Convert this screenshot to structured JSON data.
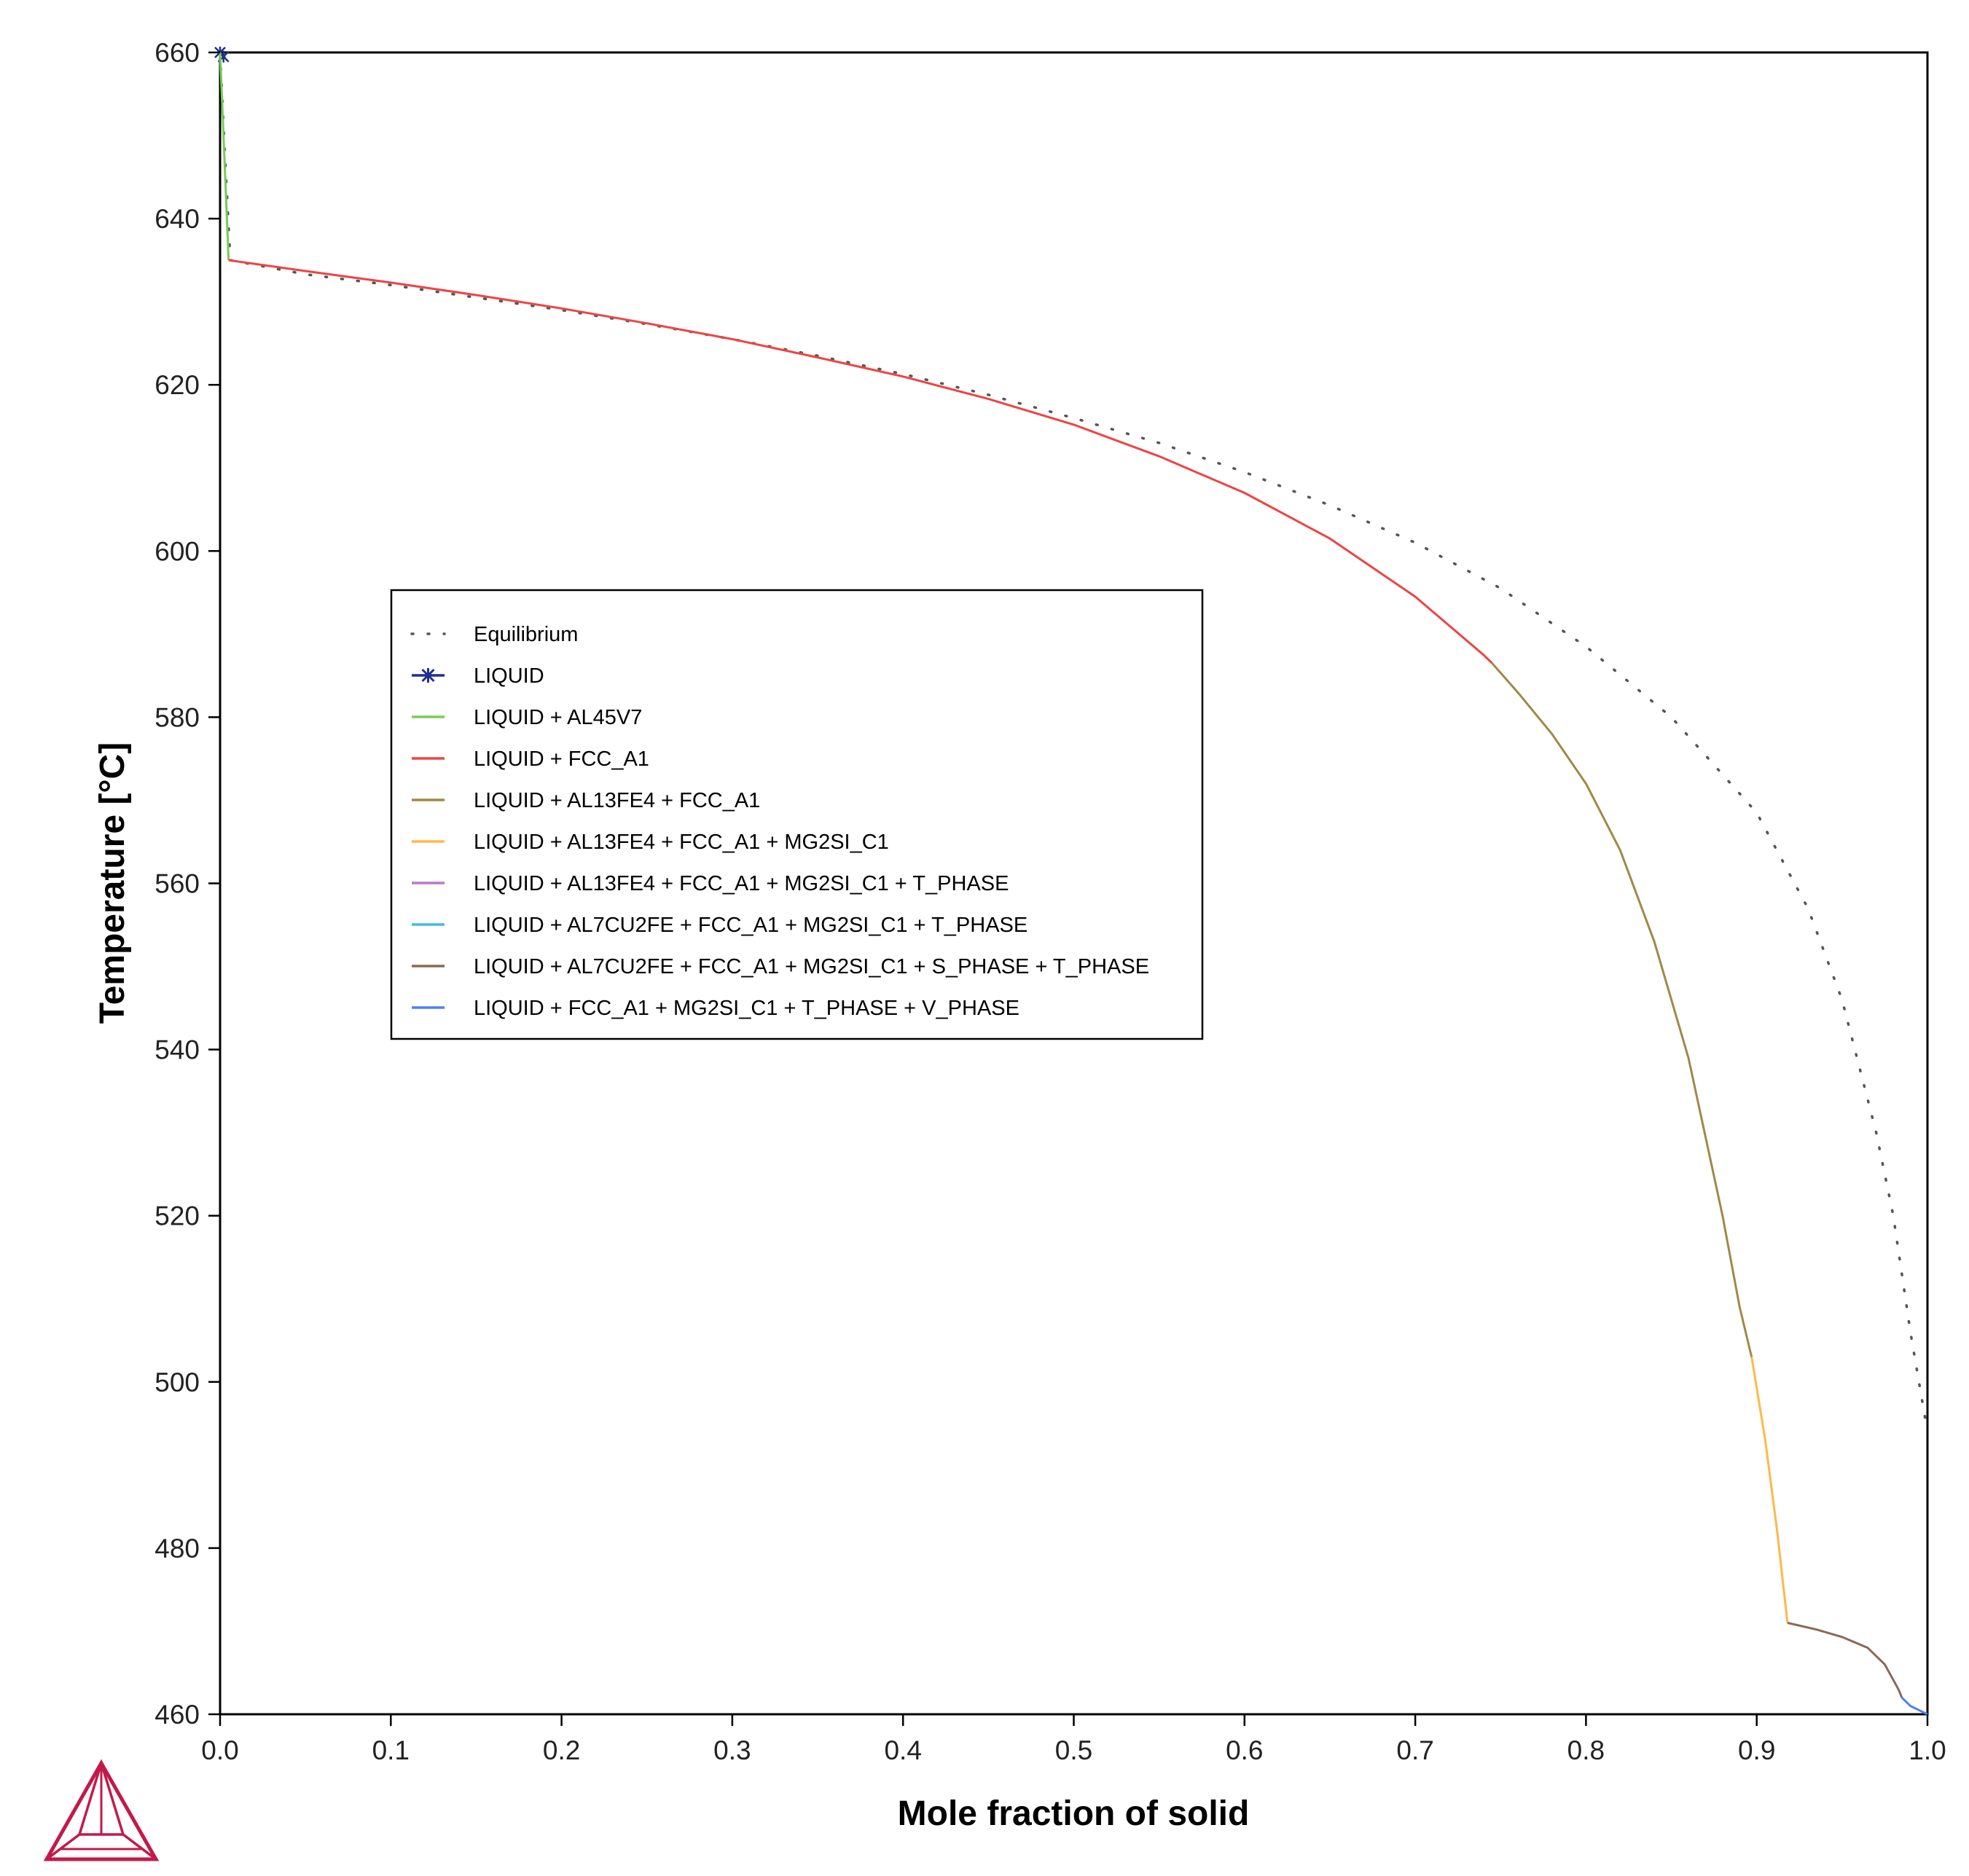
{
  "chart_data": {
    "type": "line",
    "xlabel": "Mole fraction of solid",
    "ylabel": "Temperature [°C]",
    "xlim": [
      0.0,
      1.0
    ],
    "ylim": [
      460,
      660
    ],
    "xticks": [
      0.0,
      0.1,
      0.2,
      0.3,
      0.4,
      0.5,
      0.6,
      0.7,
      0.8,
      0.9,
      1.0
    ],
    "xtick_labels": [
      "0.0",
      "0.1",
      "0.2",
      "0.3",
      "0.4",
      "0.5",
      "0.6",
      "0.7",
      "0.8",
      "0.9",
      "1.0"
    ],
    "yticks": [
      460,
      480,
      500,
      520,
      540,
      560,
      580,
      600,
      620,
      640,
      660
    ],
    "ytick_labels": [
      "460",
      "480",
      "500",
      "520",
      "540",
      "560",
      "580",
      "600",
      "620",
      "640",
      "660"
    ],
    "grid": false,
    "legend_position": "center-left",
    "series": [
      {
        "name": "Equilibrium",
        "color": "#555555",
        "style": "dotted",
        "points": [
          [
            0.0,
            660
          ],
          [
            0.003,
            647
          ],
          [
            0.006,
            635
          ],
          [
            0.05,
            633.3
          ],
          [
            0.1,
            632
          ],
          [
            0.15,
            630.5
          ],
          [
            0.2,
            629
          ],
          [
            0.25,
            627.3
          ],
          [
            0.3,
            625.5
          ],
          [
            0.35,
            623.5
          ],
          [
            0.4,
            621.3
          ],
          [
            0.45,
            618.8
          ],
          [
            0.5,
            616
          ],
          [
            0.55,
            613
          ],
          [
            0.6,
            609.5
          ],
          [
            0.65,
            605.5
          ],
          [
            0.7,
            601
          ],
          [
            0.75,
            595.5
          ],
          [
            0.8,
            588.5
          ],
          [
            0.85,
            580
          ],
          [
            0.9,
            568.5
          ],
          [
            0.93,
            557
          ],
          [
            0.95,
            546
          ],
          [
            0.97,
            530
          ],
          [
            0.98,
            520
          ],
          [
            0.99,
            506
          ],
          [
            1.0,
            494
          ]
        ]
      },
      {
        "name": "LIQUID",
        "color": "#1f2f8f",
        "style": "star",
        "points": [
          [
            0.0,
            660
          ],
          [
            0.002,
            659.5
          ]
        ]
      },
      {
        "name": "LIQUID + AL45V7",
        "color": "#77cc55",
        "style": "solid",
        "points": [
          [
            0.0,
            660
          ],
          [
            0.002,
            650
          ],
          [
            0.004,
            640
          ],
          [
            0.005,
            635
          ]
        ]
      },
      {
        "name": "LIQUID + FCC_A1",
        "color": "#ee4444",
        "style": "solid",
        "points": [
          [
            0.005,
            635
          ],
          [
            0.05,
            633.7
          ],
          [
            0.1,
            632.3
          ],
          [
            0.15,
            630.8
          ],
          [
            0.2,
            629.2
          ],
          [
            0.25,
            627.4
          ],
          [
            0.3,
            625.5
          ],
          [
            0.35,
            623.3
          ],
          [
            0.4,
            621
          ],
          [
            0.45,
            618.3
          ],
          [
            0.5,
            615.2
          ],
          [
            0.55,
            611.4
          ],
          [
            0.6,
            607
          ],
          [
            0.65,
            601.5
          ],
          [
            0.7,
            594.5
          ],
          [
            0.74,
            587.5
          ],
          [
            0.745,
            586.5
          ]
        ]
      },
      {
        "name": "LIQUID + AL13FE4 + FCC_A1",
        "color": "#a08848",
        "style": "solid",
        "points": [
          [
            0.745,
            586.5
          ],
          [
            0.76,
            583
          ],
          [
            0.78,
            578
          ],
          [
            0.8,
            572
          ],
          [
            0.82,
            564
          ],
          [
            0.84,
            553
          ],
          [
            0.86,
            539
          ],
          [
            0.88,
            520
          ],
          [
            0.89,
            509
          ],
          [
            0.897,
            503
          ]
        ]
      },
      {
        "name": "LIQUID + AL13FE4 + FCC_A1 + MG2SI_C1",
        "color": "#ffb84a",
        "style": "solid",
        "points": [
          [
            0.897,
            503
          ],
          [
            0.905,
            493
          ],
          [
            0.912,
            482
          ],
          [
            0.918,
            471
          ]
        ]
      },
      {
        "name": "LIQUID + AL13FE4 + FCC_A1 + MG2SI_C1 + T_PHASE",
        "color": "#bb77cc",
        "style": "solid",
        "points": []
      },
      {
        "name": "LIQUID + AL7CU2FE + FCC_A1 + MG2SI_C1 + T_PHASE",
        "color": "#44bbe0",
        "style": "solid",
        "points": []
      },
      {
        "name": "LIQUID + AL7CU2FE + FCC_A1 + MG2SI_C1 + S_PHASE + T_PHASE",
        "color": "#8a6a55",
        "style": "solid",
        "points": [
          [
            0.918,
            471
          ],
          [
            0.935,
            470.2
          ],
          [
            0.95,
            469.3
          ],
          [
            0.965,
            468
          ],
          [
            0.975,
            466
          ],
          [
            0.983,
            463
          ],
          [
            0.985,
            462
          ]
        ]
      },
      {
        "name": "LIQUID + FCC_A1 + MG2SI_C1 + T_PHASE + V_PHASE",
        "color": "#4d7fff",
        "style": "solid",
        "points": [
          [
            0.985,
            462
          ],
          [
            0.99,
            461
          ],
          [
            0.995,
            460.5
          ],
          [
            1.0,
            460
          ]
        ]
      }
    ]
  }
}
